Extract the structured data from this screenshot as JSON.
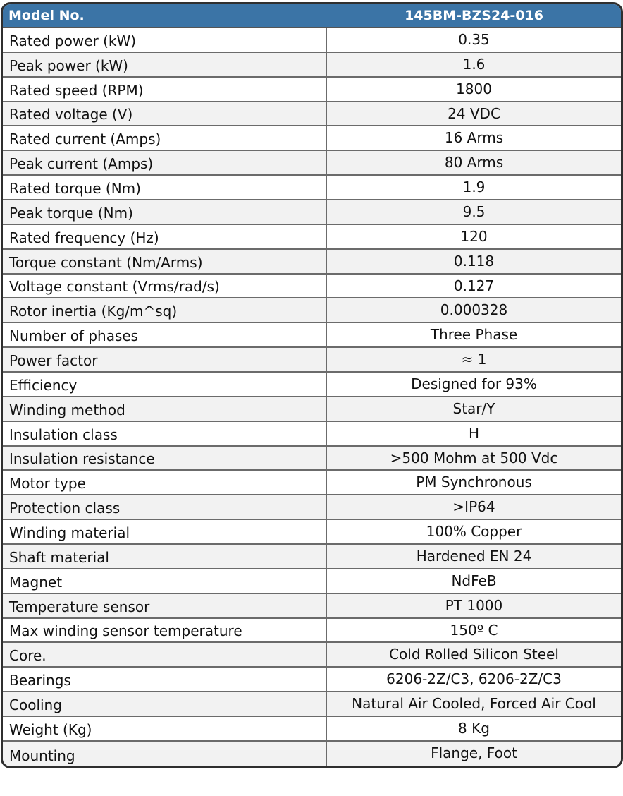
{
  "header": {
    "label": "Model No.",
    "value": "145BM-BZS24-016"
  },
  "colors": {
    "header_bg": "#3b74a6",
    "border": "#2f2f2f",
    "alt_row": "#f2f2f2"
  },
  "rows": [
    {
      "label": "Rated power (kW)",
      "value": "0.35"
    },
    {
      "label": "Peak power (kW)",
      "value": "1.6"
    },
    {
      "label": "Rated speed (RPM)",
      "value": "1800"
    },
    {
      "label": "Rated voltage (V)",
      "value": "24 VDC"
    },
    {
      "label": "Rated current (Amps)",
      "value": "16 Arms"
    },
    {
      "label": "Peak current (Amps)",
      "value": "80 Arms"
    },
    {
      "label": "Rated torque (Nm)",
      "value": "1.9"
    },
    {
      "label": "Peak torque (Nm)",
      "value": "9.5"
    },
    {
      "label": "Rated frequency (Hz)",
      "value": "120"
    },
    {
      "label": "Torque constant (Nm/Arms)",
      "value": "0.118"
    },
    {
      "label": "Voltage constant (Vrms/rad/s)",
      "value": "0.127"
    },
    {
      "label": "Rotor inertia (Kg/m^sq)",
      "value": "0.000328"
    },
    {
      "label": "Number of phases",
      "value": "Three Phase"
    },
    {
      "label": "Power factor",
      "value": "≈ 1"
    },
    {
      "label": "Efficiency",
      "value": "Designed for 93%"
    },
    {
      "label": "Winding method",
      "value": "Star/Y"
    },
    {
      "label": "Insulation class",
      "value": "H"
    },
    {
      "label": "Insulation resistance",
      "value": ">500 Mohm at 500 Vdc"
    },
    {
      "label": "Motor type",
      "value": "PM Synchronous"
    },
    {
      "label": "Protection class",
      "value": ">IP64"
    },
    {
      "label": "Winding material",
      "value": "100% Copper"
    },
    {
      "label": "Shaft material",
      "value": "Hardened EN 24"
    },
    {
      "label": "Magnet",
      "value": "NdFeB"
    },
    {
      "label": "Temperature sensor",
      "value": "PT 1000"
    },
    {
      "label": "Max winding sensor temperature",
      "value": "150º C"
    },
    {
      "label": "Core.",
      "value": "Cold Rolled Silicon Steel"
    },
    {
      "label": "Bearings",
      "value": "6206-2Z/C3, 6206-2Z/C3"
    },
    {
      "label": "Cooling",
      "value": "Natural Air Cooled, Forced Air Cool"
    },
    {
      "label": "Weight (Kg)",
      "value": "8 Kg"
    },
    {
      "label": "Mounting",
      "value": "Flange, Foot"
    }
  ]
}
